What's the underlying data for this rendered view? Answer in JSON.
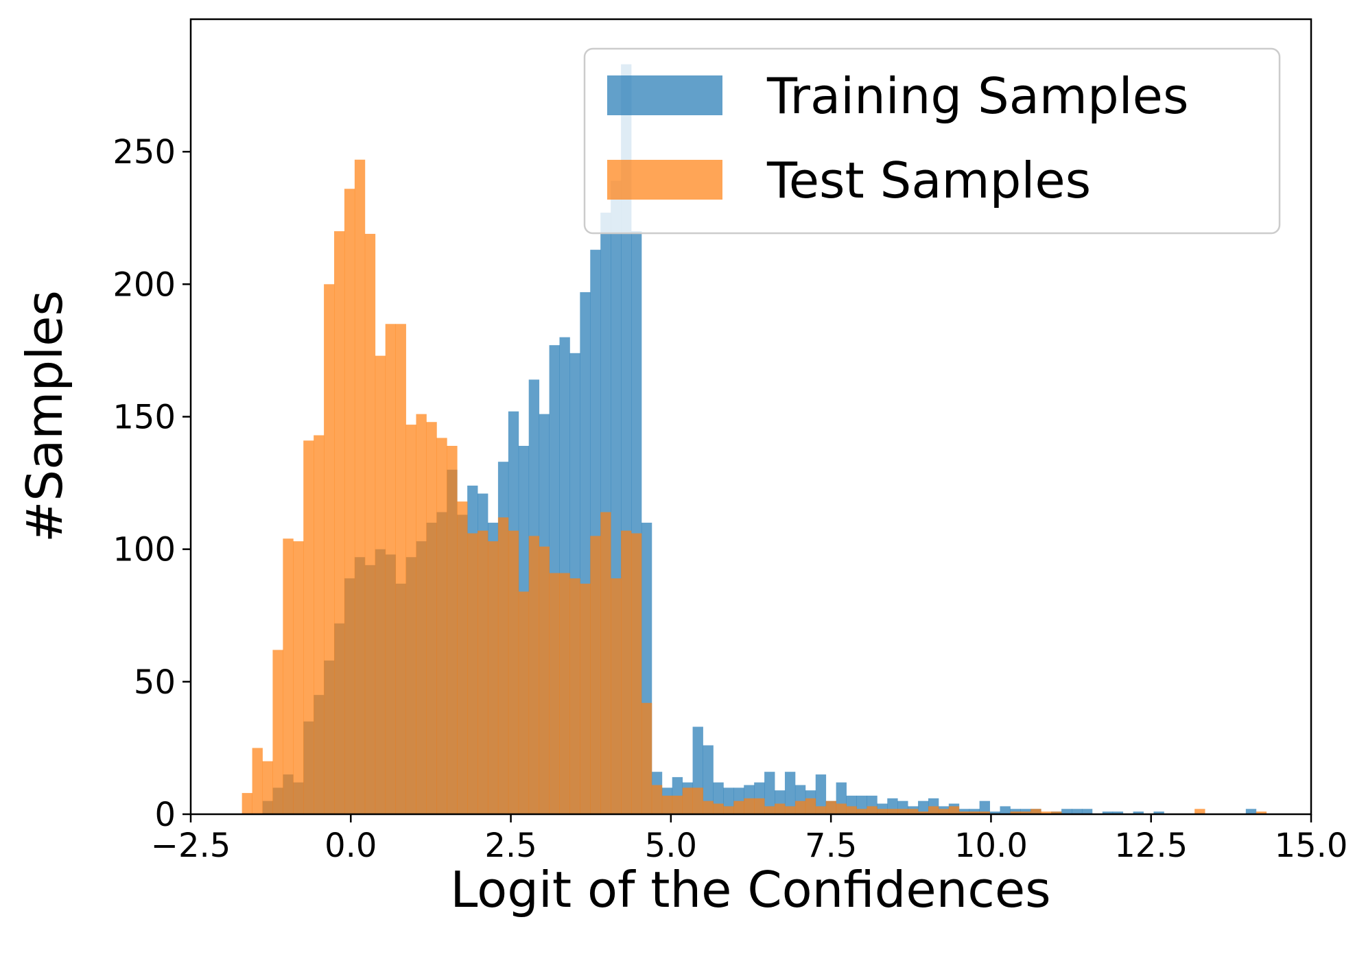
{
  "chart_data": {
    "type": "histogram",
    "title": "",
    "xlabel": "Logit of the Confidences",
    "ylabel": "#Samples",
    "xlim": [
      -2.5,
      15.0
    ],
    "ylim": [
      0,
      300
    ],
    "xticks": [
      -2.5,
      0.0,
      2.5,
      5.0,
      7.5,
      10.0,
      12.5,
      15.0
    ],
    "xtick_labels": [
      "−2.5",
      "0.0",
      "2.5",
      "5.0",
      "7.5",
      "10.0",
      "12.5",
      "15.0"
    ],
    "yticks": [
      0,
      50,
      100,
      150,
      200,
      250
    ],
    "ytick_labels": [
      "0",
      "50",
      "100",
      "150",
      "200",
      "250"
    ],
    "grid": false,
    "legend_position": "top-right",
    "bin_width": 0.16,
    "series": [
      {
        "name": "Training Samples",
        "color": "#1f77b4",
        "alpha": 0.7,
        "bins": [
          {
            "x": -1.3,
            "v": 5
          },
          {
            "x": -1.14,
            "v": 10
          },
          {
            "x": -0.98,
            "v": 15
          },
          {
            "x": -0.82,
            "v": 12
          },
          {
            "x": -0.66,
            "v": 35
          },
          {
            "x": -0.5,
            "v": 45
          },
          {
            "x": -0.34,
            "v": 58
          },
          {
            "x": -0.18,
            "v": 72
          },
          {
            "x": -0.02,
            "v": 89
          },
          {
            "x": 0.14,
            "v": 97
          },
          {
            "x": 0.3,
            "v": 94
          },
          {
            "x": 0.46,
            "v": 100
          },
          {
            "x": 0.62,
            "v": 98
          },
          {
            "x": 0.78,
            "v": 87
          },
          {
            "x": 0.94,
            "v": 97
          },
          {
            "x": 1.1,
            "v": 103
          },
          {
            "x": 1.26,
            "v": 110
          },
          {
            "x": 1.42,
            "v": 114
          },
          {
            "x": 1.58,
            "v": 130
          },
          {
            "x": 1.74,
            "v": 113
          },
          {
            "x": 1.9,
            "v": 124
          },
          {
            "x": 2.06,
            "v": 121
          },
          {
            "x": 2.22,
            "v": 110
          },
          {
            "x": 2.38,
            "v": 133
          },
          {
            "x": 2.54,
            "v": 152
          },
          {
            "x": 2.7,
            "v": 139
          },
          {
            "x": 2.86,
            "v": 164
          },
          {
            "x": 3.02,
            "v": 151
          },
          {
            "x": 3.18,
            "v": 177
          },
          {
            "x": 3.34,
            "v": 180
          },
          {
            "x": 3.5,
            "v": 174
          },
          {
            "x": 3.66,
            "v": 197
          },
          {
            "x": 3.82,
            "v": 213
          },
          {
            "x": 3.98,
            "v": 227
          },
          {
            "x": 4.14,
            "v": 239
          },
          {
            "x": 4.3,
            "v": 283
          },
          {
            "x": 4.46,
            "v": 220
          },
          {
            "x": 4.62,
            "v": 110
          },
          {
            "x": 4.78,
            "v": 16
          },
          {
            "x": 4.94,
            "v": 10
          },
          {
            "x": 5.1,
            "v": 14
          },
          {
            "x": 5.26,
            "v": 12
          },
          {
            "x": 5.42,
            "v": 33
          },
          {
            "x": 5.58,
            "v": 26
          },
          {
            "x": 5.74,
            "v": 12
          },
          {
            "x": 5.9,
            "v": 10
          },
          {
            "x": 6.06,
            "v": 10
          },
          {
            "x": 6.22,
            "v": 11
          },
          {
            "x": 6.38,
            "v": 12
          },
          {
            "x": 6.54,
            "v": 16
          },
          {
            "x": 6.7,
            "v": 9
          },
          {
            "x": 6.86,
            "v": 16
          },
          {
            "x": 7.02,
            "v": 11
          },
          {
            "x": 7.18,
            "v": 9
          },
          {
            "x": 7.34,
            "v": 15
          },
          {
            "x": 7.5,
            "v": 5
          },
          {
            "x": 7.66,
            "v": 12
          },
          {
            "x": 7.82,
            "v": 7
          },
          {
            "x": 7.98,
            "v": 7
          },
          {
            "x": 8.14,
            "v": 7
          },
          {
            "x": 8.3,
            "v": 4
          },
          {
            "x": 8.46,
            "v": 6
          },
          {
            "x": 8.62,
            "v": 5
          },
          {
            "x": 8.78,
            "v": 3
          },
          {
            "x": 8.94,
            "v": 5
          },
          {
            "x": 9.1,
            "v": 6
          },
          {
            "x": 9.26,
            "v": 3
          },
          {
            "x": 9.42,
            "v": 4
          },
          {
            "x": 9.58,
            "v": 2
          },
          {
            "x": 9.74,
            "v": 2
          },
          {
            "x": 9.9,
            "v": 5
          },
          {
            "x": 10.06,
            "v": 1
          },
          {
            "x": 10.22,
            "v": 3
          },
          {
            "x": 10.38,
            "v": 2
          },
          {
            "x": 10.54,
            "v": 2
          },
          {
            "x": 10.7,
            "v": 2
          },
          {
            "x": 11.02,
            "v": 1
          },
          {
            "x": 11.18,
            "v": 2
          },
          {
            "x": 11.34,
            "v": 2
          },
          {
            "x": 11.5,
            "v": 2
          },
          {
            "x": 11.82,
            "v": 1
          },
          {
            "x": 11.98,
            "v": 1
          },
          {
            "x": 12.3,
            "v": 1
          },
          {
            "x": 12.62,
            "v": 1
          },
          {
            "x": 14.06,
            "v": 2
          }
        ]
      },
      {
        "name": "Test Samples",
        "color": "#ff7f0e",
        "alpha": 0.7,
        "bins": [
          {
            "x": -1.62,
            "v": 8
          },
          {
            "x": -1.46,
            "v": 25
          },
          {
            "x": -1.3,
            "v": 20
          },
          {
            "x": -1.14,
            "v": 62
          },
          {
            "x": -0.98,
            "v": 104
          },
          {
            "x": -0.82,
            "v": 103
          },
          {
            "x": -0.66,
            "v": 141
          },
          {
            "x": -0.5,
            "v": 143
          },
          {
            "x": -0.34,
            "v": 200
          },
          {
            "x": -0.18,
            "v": 220
          },
          {
            "x": -0.02,
            "v": 236
          },
          {
            "x": 0.14,
            "v": 247
          },
          {
            "x": 0.3,
            "v": 219
          },
          {
            "x": 0.46,
            "v": 173
          },
          {
            "x": 0.62,
            "v": 185
          },
          {
            "x": 0.78,
            "v": 185
          },
          {
            "x": 0.94,
            "v": 147
          },
          {
            "x": 1.1,
            "v": 151
          },
          {
            "x": 1.26,
            "v": 148
          },
          {
            "x": 1.42,
            "v": 142
          },
          {
            "x": 1.58,
            "v": 139
          },
          {
            "x": 1.74,
            "v": 118
          },
          {
            "x": 1.9,
            "v": 106
          },
          {
            "x": 2.06,
            "v": 107
          },
          {
            "x": 2.22,
            "v": 103
          },
          {
            "x": 2.38,
            "v": 112
          },
          {
            "x": 2.54,
            "v": 107
          },
          {
            "x": 2.7,
            "v": 84
          },
          {
            "x": 2.86,
            "v": 105
          },
          {
            "x": 3.02,
            "v": 101
          },
          {
            "x": 3.18,
            "v": 91
          },
          {
            "x": 3.34,
            "v": 91
          },
          {
            "x": 3.5,
            "v": 89
          },
          {
            "x": 3.66,
            "v": 87
          },
          {
            "x": 3.82,
            "v": 105
          },
          {
            "x": 3.98,
            "v": 114
          },
          {
            "x": 4.14,
            "v": 89
          },
          {
            "x": 4.3,
            "v": 107
          },
          {
            "x": 4.46,
            "v": 106
          },
          {
            "x": 4.62,
            "v": 42
          },
          {
            "x": 4.78,
            "v": 11
          },
          {
            "x": 4.94,
            "v": 7
          },
          {
            "x": 5.1,
            "v": 7
          },
          {
            "x": 5.26,
            "v": 10
          },
          {
            "x": 5.42,
            "v": 10
          },
          {
            "x": 5.58,
            "v": 5
          },
          {
            "x": 5.74,
            "v": 4
          },
          {
            "x": 5.9,
            "v": 3
          },
          {
            "x": 6.06,
            "v": 5
          },
          {
            "x": 6.22,
            "v": 6
          },
          {
            "x": 6.38,
            "v": 6
          },
          {
            "x": 6.54,
            "v": 3
          },
          {
            "x": 6.7,
            "v": 4
          },
          {
            "x": 6.86,
            "v": 3
          },
          {
            "x": 7.02,
            "v": 5
          },
          {
            "x": 7.18,
            "v": 6
          },
          {
            "x": 7.34,
            "v": 3
          },
          {
            "x": 7.5,
            "v": 5
          },
          {
            "x": 7.66,
            "v": 4
          },
          {
            "x": 7.82,
            "v": 3
          },
          {
            "x": 7.98,
            "v": 2
          },
          {
            "x": 8.14,
            "v": 3
          },
          {
            "x": 8.3,
            "v": 2
          },
          {
            "x": 8.46,
            "v": 2
          },
          {
            "x": 8.62,
            "v": 2
          },
          {
            "x": 8.78,
            "v": 2
          },
          {
            "x": 8.94,
            "v": 1
          },
          {
            "x": 9.1,
            "v": 3
          },
          {
            "x": 9.26,
            "v": 2
          },
          {
            "x": 9.42,
            "v": 3
          },
          {
            "x": 9.58,
            "v": 1
          },
          {
            "x": 9.74,
            "v": 1
          },
          {
            "x": 9.9,
            "v": 1
          },
          {
            "x": 10.38,
            "v": 1
          },
          {
            "x": 10.54,
            "v": 1
          },
          {
            "x": 10.7,
            "v": 2
          },
          {
            "x": 10.86,
            "v": 1
          },
          {
            "x": 11.02,
            "v": 1
          },
          {
            "x": 13.26,
            "v": 2
          },
          {
            "x": 14.22,
            "v": 1
          }
        ]
      }
    ]
  }
}
